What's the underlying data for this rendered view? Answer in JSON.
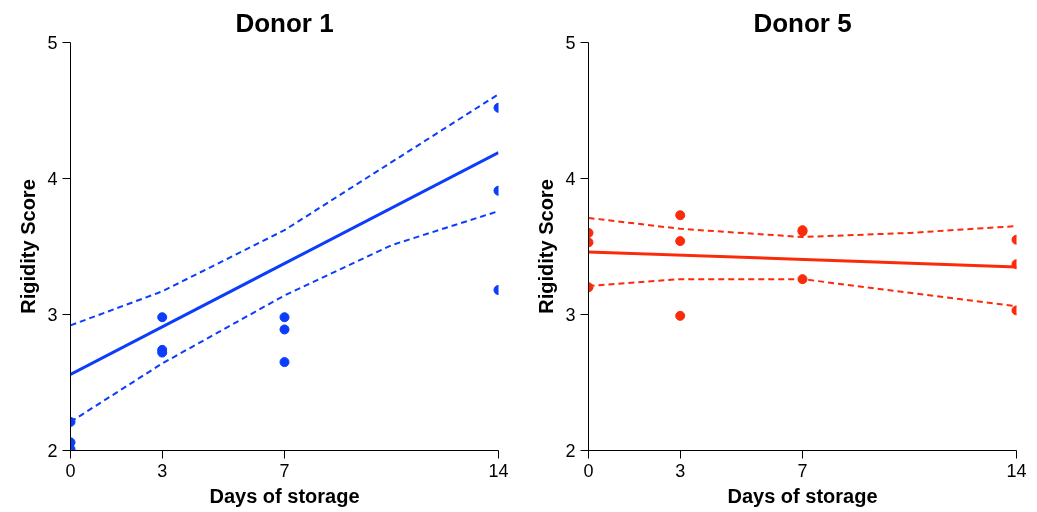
{
  "chart_data": [
    {
      "type": "scatter",
      "title": "Donor 1",
      "xlabel": "Days of storage",
      "ylabel": "Rigidity Score",
      "xlim": [
        0,
        14
      ],
      "ylim": [
        2,
        5
      ],
      "xticks": [
        0,
        3,
        7,
        14
      ],
      "yticks": [
        2,
        3,
        4,
        5
      ],
      "grid": false,
      "series": [
        {
          "color": "#0b3dfb",
          "marker": "circle",
          "x": [
            0,
            0,
            0,
            3,
            3,
            3,
            7,
            7,
            7,
            14,
            14,
            14
          ],
          "values": [
            2.21,
            2.06,
            2.01,
            2.98,
            2.74,
            2.72,
            2.98,
            2.89,
            2.65,
            4.52,
            3.91,
            3.18
          ]
        },
        {
          "type": "line",
          "color": "#0b3dfb",
          "line_style": "solid",
          "x": [
            0,
            14
          ],
          "values": [
            2.56,
            4.19
          ]
        },
        {
          "type": "line",
          "color": "#0b3dfb",
          "line_style": "dashed",
          "x": [
            0,
            3,
            7,
            10.5,
            14
          ],
          "values": [
            2.92,
            3.17,
            3.62,
            4.12,
            4.62
          ]
        },
        {
          "type": "line",
          "color": "#0b3dfb",
          "line_style": "dashed",
          "x": [
            0,
            3,
            7,
            10.5,
            14
          ],
          "values": [
            2.21,
            2.64,
            3.14,
            3.51,
            3.76
          ]
        }
      ]
    },
    {
      "type": "scatter",
      "title": "Donor 5",
      "xlabel": "Days of storage",
      "ylabel": "Rigidity Score",
      "xlim": [
        0,
        14
      ],
      "ylim": [
        2,
        5
      ],
      "xticks": [
        0,
        3,
        7,
        14
      ],
      "yticks": [
        2,
        3,
        4,
        5
      ],
      "grid": false,
      "series": [
        {
          "color": "#fb2a0b",
          "marker": "circle",
          "x": [
            0,
            0,
            0,
            3,
            3,
            3,
            7,
            7,
            7,
            14,
            14,
            14
          ],
          "values": [
            3.6,
            3.53,
            3.2,
            3.73,
            3.54,
            2.99,
            3.62,
            3.61,
            3.26,
            3.55,
            3.37,
            3.03
          ]
        },
        {
          "type": "line",
          "color": "#fb2a0b",
          "line_style": "solid",
          "x": [
            0,
            14
          ],
          "values": [
            3.46,
            3.35
          ]
        },
        {
          "type": "line",
          "color": "#fb2a0b",
          "line_style": "dashed",
          "x": [
            0,
            3,
            7,
            10.5,
            14
          ],
          "values": [
            3.71,
            3.63,
            3.57,
            3.6,
            3.65
          ]
        },
        {
          "type": "line",
          "color": "#fb2a0b",
          "line_style": "dashed",
          "x": [
            0,
            3,
            7,
            10.5,
            14
          ],
          "values": [
            3.21,
            3.26,
            3.26,
            3.16,
            3.06
          ]
        }
      ]
    }
  ]
}
